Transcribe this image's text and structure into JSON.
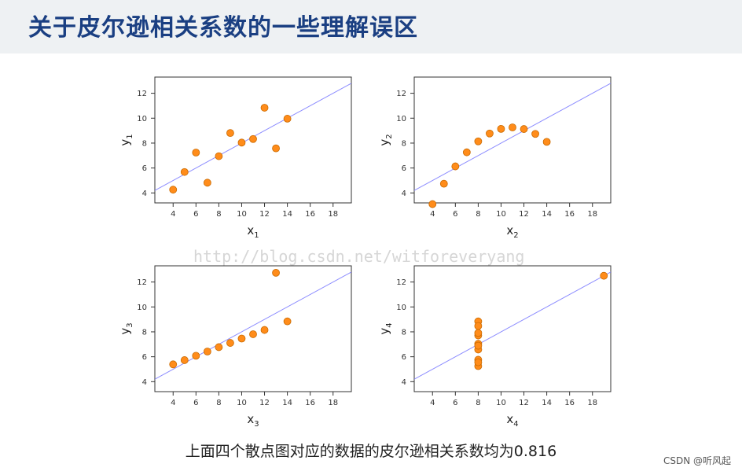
{
  "header": {
    "title": "关于皮尔逊相关系数的一些理解误区"
  },
  "watermark": "http://blog.csdn.net/witforeveryang",
  "caption": "上面四个散点图对应的数据的皮尔逊相关系数均为0.816",
  "credit": "CSDN @听风起",
  "colors": {
    "point": "#ff8c1a",
    "point_stroke": "#c96a00",
    "fit_line": "#8c8cff",
    "axis": "#333333",
    "title": "#1a3f82"
  },
  "chart_data": [
    {
      "type": "scatter",
      "xlabel": "x",
      "xlabel_sub": "1",
      "ylabel": "y",
      "ylabel_sub": "1",
      "xlim": [
        2.4,
        19.6
      ],
      "ylim": [
        3.2,
        13.3
      ],
      "xticks": [
        4,
        6,
        8,
        10,
        12,
        14,
        16,
        18
      ],
      "yticks": [
        4,
        6,
        8,
        10,
        12
      ],
      "x": [
        10,
        8,
        13,
        9,
        11,
        14,
        6,
        4,
        12,
        7,
        5
      ],
      "y": [
        8.04,
        6.95,
        7.58,
        8.81,
        8.33,
        9.96,
        7.24,
        4.26,
        10.84,
        4.82,
        5.68
      ],
      "fit": {
        "intercept": 3.0,
        "slope": 0.5
      }
    },
    {
      "type": "scatter",
      "xlabel": "x",
      "xlabel_sub": "2",
      "ylabel": "y",
      "ylabel_sub": "2",
      "xlim": [
        2.4,
        19.6
      ],
      "ylim": [
        3.2,
        13.3
      ],
      "xticks": [
        4,
        6,
        8,
        10,
        12,
        14,
        16,
        18
      ],
      "yticks": [
        4,
        6,
        8,
        10,
        12
      ],
      "x": [
        10,
        8,
        13,
        9,
        11,
        14,
        6,
        4,
        12,
        7,
        5
      ],
      "y": [
        9.14,
        8.14,
        8.74,
        8.77,
        9.26,
        8.1,
        6.13,
        3.1,
        9.13,
        7.26,
        4.74
      ],
      "fit": {
        "intercept": 3.0,
        "slope": 0.5
      }
    },
    {
      "type": "scatter",
      "xlabel": "x",
      "xlabel_sub": "3",
      "ylabel": "y",
      "ylabel_sub": "3",
      "xlim": [
        2.4,
        19.6
      ],
      "ylim": [
        3.2,
        13.3
      ],
      "xticks": [
        4,
        6,
        8,
        10,
        12,
        14,
        16,
        18
      ],
      "yticks": [
        4,
        6,
        8,
        10,
        12
      ],
      "x": [
        10,
        8,
        13,
        9,
        11,
        14,
        6,
        4,
        12,
        7,
        5
      ],
      "y": [
        7.46,
        6.77,
        12.74,
        7.11,
        7.81,
        8.84,
        6.08,
        5.39,
        8.15,
        6.42,
        5.73
      ],
      "fit": {
        "intercept": 3.0,
        "slope": 0.5
      }
    },
    {
      "type": "scatter",
      "xlabel": "x",
      "xlabel_sub": "4",
      "ylabel": "y",
      "ylabel_sub": "4",
      "xlim": [
        2.4,
        19.6
      ],
      "ylim": [
        3.2,
        13.3
      ],
      "xticks": [
        4,
        6,
        8,
        10,
        12,
        14,
        16,
        18
      ],
      "yticks": [
        4,
        6,
        8,
        10,
        12
      ],
      "x": [
        8,
        8,
        8,
        8,
        8,
        8,
        8,
        19,
        8,
        8,
        8
      ],
      "y": [
        6.58,
        5.76,
        7.71,
        8.84,
        8.47,
        7.04,
        5.25,
        12.5,
        5.56,
        7.91,
        6.89
      ],
      "fit": {
        "intercept": 3.0,
        "slope": 0.5
      }
    }
  ]
}
